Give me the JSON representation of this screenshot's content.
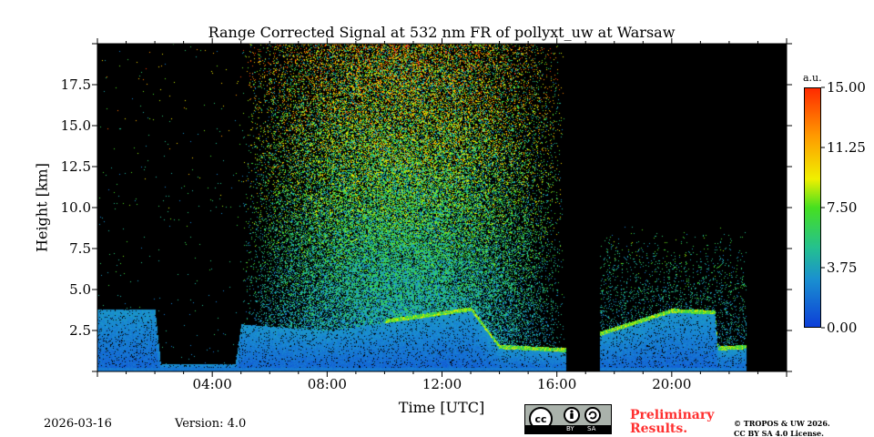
{
  "chart_data": {
    "type": "heatmap",
    "title": "Range Corrected Signal at 532 nm FR of pollyxt_uw at Warsaw",
    "xlabel": "Time [UTC]",
    "ylabel": "Height [km]",
    "xlim_hours": [
      0,
      24
    ],
    "ylim_km": [
      0,
      20
    ],
    "x_ticks": [
      "04:00",
      "08:00",
      "12:00",
      "16:00",
      "20:00"
    ],
    "y_ticks": [
      "2.5",
      "5.0",
      "7.5",
      "10.0",
      "12.5",
      "15.0",
      "17.5"
    ],
    "colorbar": {
      "unit": "a.u.",
      "range": [
        0,
        15
      ],
      "ticks": [
        "0.00",
        "3.75",
        "7.50",
        "11.25",
        "15.00"
      ],
      "colormap": "jet"
    },
    "no_data_intervals_hours": [
      [
        16.3,
        17.5
      ],
      [
        22.6,
        24
      ]
    ],
    "boundary_layer_top_km": [
      {
        "t": 0,
        "h": 3.8
      },
      {
        "t": 2,
        "h": 3.8
      },
      {
        "t": 2.2,
        "h": 0.5
      },
      {
        "t": 4.8,
        "h": 0.5
      },
      {
        "t": 5,
        "h": 2.9
      },
      {
        "t": 8,
        "h": 2.5
      },
      {
        "t": 11,
        "h": 3.2
      },
      {
        "t": 13,
        "h": 3.7
      },
      {
        "t": 14,
        "h": 1.4
      },
      {
        "t": 16.3,
        "h": 1.2
      },
      {
        "t": 17.5,
        "h": 2.2
      },
      {
        "t": 20,
        "h": 3.6
      },
      {
        "t": 21.5,
        "h": 3.5
      },
      {
        "t": 21.6,
        "h": 1.3
      },
      {
        "t": 22.6,
        "h": 1.4
      }
    ],
    "background": "black"
  },
  "footer": {
    "date": "2026-03-16",
    "version": "Version: 4.0",
    "license_badge": {
      "cc": "cc",
      "by": "BY",
      "sa": "SA"
    },
    "preliminary": [
      "Preliminary",
      "Results."
    ],
    "copyright": [
      "© TROPOS & UW 2026.",
      "CC BY SA 4.0 License."
    ]
  }
}
